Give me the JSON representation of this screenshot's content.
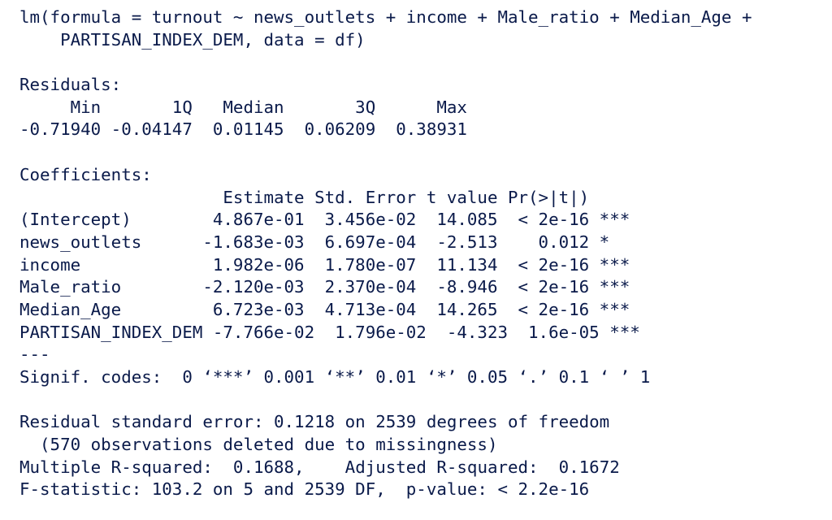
{
  "console": {
    "lines": [
      "lm(formula = turnout ~ news_outlets + income + Male_ratio + Median_Age +",
      "    PARTISAN_INDEX_DEM, data = df)",
      "",
      "Residuals:",
      "     Min       1Q   Median       3Q      Max ",
      "-0.71940 -0.04147  0.01145  0.06209  0.38931 ",
      "",
      "Coefficients:",
      "                    Estimate Std. Error t value Pr(>|t|)    ",
      "(Intercept)        4.867e-01  3.456e-02  14.085  < 2e-16 ***",
      "news_outlets      -1.683e-03  6.697e-04  -2.513    0.012 *  ",
      "income             1.982e-06  1.780e-07  11.134  < 2e-16 ***",
      "Male_ratio        -2.120e-03  2.370e-04  -8.946  < 2e-16 ***",
      "Median_Age         6.723e-03  4.713e-04  14.265  < 2e-16 ***",
      "PARTISAN_INDEX_DEM -7.766e-02  1.796e-02  -4.323  1.6e-05 ***",
      "---",
      "Signif. codes:  0 ‘***’ 0.001 ‘**’ 0.01 ‘*’ 0.05 ‘.’ 0.1 ‘ ’ 1",
      "",
      "Residual standard error: 0.1218 on 2539 degrees of freedom",
      "  (570 observations deleted due to missingness)",
      "Multiple R-squared:  0.1688,\tAdjusted R-squared:  0.1672 ",
      "F-statistic: 103.2 on 5 and 2539 DF,  p-value: < 2.2e-16"
    ]
  },
  "colors": {
    "text": "#0a1a4a",
    "background": "#ffffff"
  }
}
